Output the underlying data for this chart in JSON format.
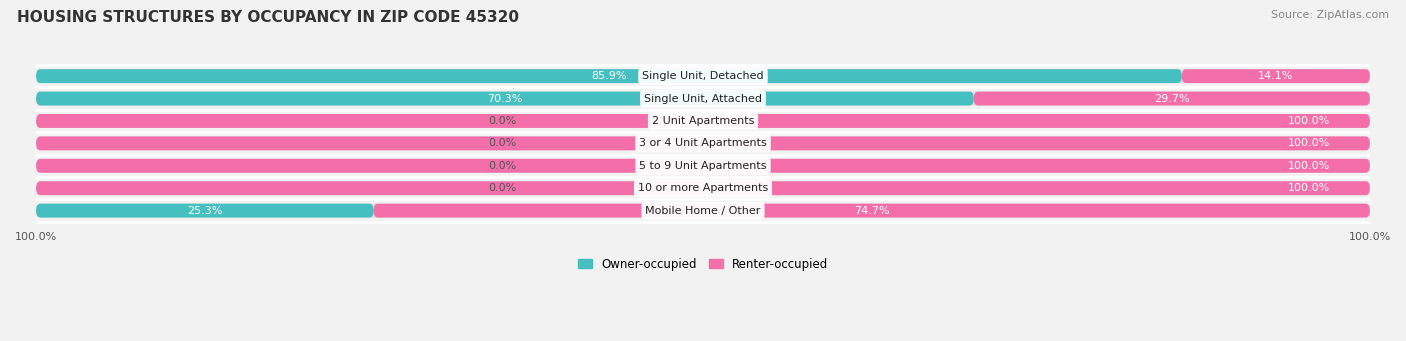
{
  "title": "HOUSING STRUCTURES BY OCCUPANCY IN ZIP CODE 45320",
  "source": "Source: ZipAtlas.com",
  "categories": [
    "Single Unit, Detached",
    "Single Unit, Attached",
    "2 Unit Apartments",
    "3 or 4 Unit Apartments",
    "5 to 9 Unit Apartments",
    "10 or more Apartments",
    "Mobile Home / Other"
  ],
  "owner_pct": [
    85.9,
    70.3,
    0.0,
    0.0,
    0.0,
    0.0,
    25.3
  ],
  "renter_pct": [
    14.1,
    29.7,
    100.0,
    100.0,
    100.0,
    100.0,
    74.7
  ],
  "owner_color": "#45bfbf",
  "renter_color": "#f46faa",
  "bg_color": "#f2f2f2",
  "row_bg_color": "#e0e0e0",
  "bar_height": 0.62,
  "title_fontsize": 11,
  "source_fontsize": 8,
  "label_fontsize": 8,
  "cat_fontsize": 8,
  "pct_label_fontsize": 8
}
